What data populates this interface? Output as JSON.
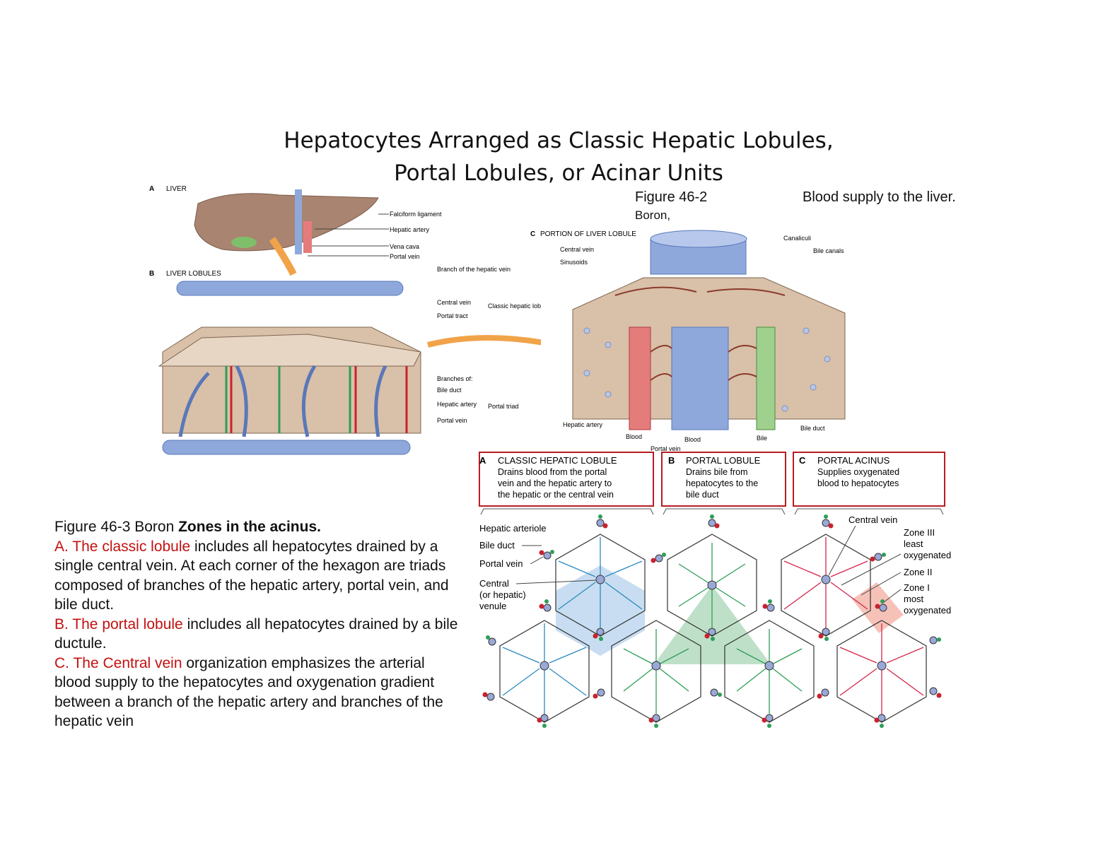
{
  "title": {
    "line1": "Hepatocytes Arranged as Classic Hepatic Lobules,",
    "line2": "Portal Lobules, or Acinar Units"
  },
  "figure_46_2": {
    "ref": "Figure 46-2",
    "source": "Boron,",
    "caption": "Blood supply to the liver.",
    "panel_a": {
      "letter": "A",
      "title": "LIVER",
      "labels": [
        "Falciform ligament",
        "Hepatic artery",
        "Vena cava",
        "Portal vein"
      ]
    },
    "panel_b": {
      "letter": "B",
      "title": "LIVER LOBULES",
      "branch_hepatic_vein": "Branch of the hepatic vein",
      "central_vein": "Central vein",
      "portal_tract": "Portal tract",
      "classic_lobule": "Classic hepatic lobule",
      "branches_of": "Branches of:",
      "bile_duct": "Bile duct",
      "hepatic_artery": "Hepatic artery",
      "portal_vein": "Portal vein",
      "portal_triad": "Portal triad"
    },
    "panel_c": {
      "letter": "C",
      "title": "PORTION OF LIVER LOBULE",
      "central_vein": "Central vein",
      "sinusoids": "Sinusoids",
      "canaliculi": "Canaliculi",
      "bile_canals": "Bile canals",
      "hepatic_artery": "Hepatic artery",
      "blood1": "Blood",
      "blood2": "Blood",
      "bile": "Bile",
      "bile_duct": "Bile duct",
      "portal_vein": "Portal vein"
    }
  },
  "figure_46_3": {
    "ref_line": "Figure 46-3  Boron ",
    "ref_bold": "Zones in the acinus.",
    "a_red": "A. The classic lobule",
    "a_text": " includes all hepatocytes drained by a single central vein. At each corner of the hexagon are triads composed of branches of the hepatic artery, portal vein, and bile duct.",
    "b_red": "B. The portal lobule",
    "b_text": " includes all hepatocytes drained by a bile ductule.",
    "c_red": "C. The Central vein",
    "c_text": " organization emphasizes the arterial blood supply to the hepatocytes and oxygenation gradient between a branch of the hepatic artery and branches of the hepatic vein",
    "boxes": [
      {
        "letter": "A",
        "title": "CLASSIC HEPATIC LOBULE",
        "l1": "Drains blood from the portal",
        "l2": "vein and the hepatic artery to",
        "l3": "the hepatic or the central vein"
      },
      {
        "letter": "B",
        "title": "PORTAL LOBULE",
        "l1": "Drains bile from",
        "l2": "hepatocytes to the",
        "l3": "bile duct"
      },
      {
        "letter": "C",
        "title": "PORTAL ACINUS",
        "l1": "Supplies oxygenated",
        "l2": "blood to hepatocytes",
        "l3": ""
      }
    ],
    "left_labels": {
      "hepatic_arteriole": "Hepatic arteriole",
      "bile_duct": "Bile duct",
      "portal_vein": "Portal vein",
      "central1": "Central",
      "central2": "(or hepatic)",
      "central3": "venule"
    },
    "right_labels": {
      "central_vein": "Central vein",
      "zone3_1": "Zone III",
      "zone3_2": "least",
      "zone3_3": "oxygenated",
      "zone2": "Zone II",
      "zone1_1": "Zone I",
      "zone1_2": "most",
      "zone1_3": "oxygenated"
    }
  },
  "colors": {
    "caption_red": "#c41010",
    "box_red": "#b81c22",
    "classic_blue": "#2a8ac0",
    "portal_green": "#2e9e58",
    "acinus_red": "#d4264a",
    "vein_blue": "#8ea8dc",
    "tissue_tan": "#d9c0a8",
    "liver_brown": "#a98470"
  }
}
